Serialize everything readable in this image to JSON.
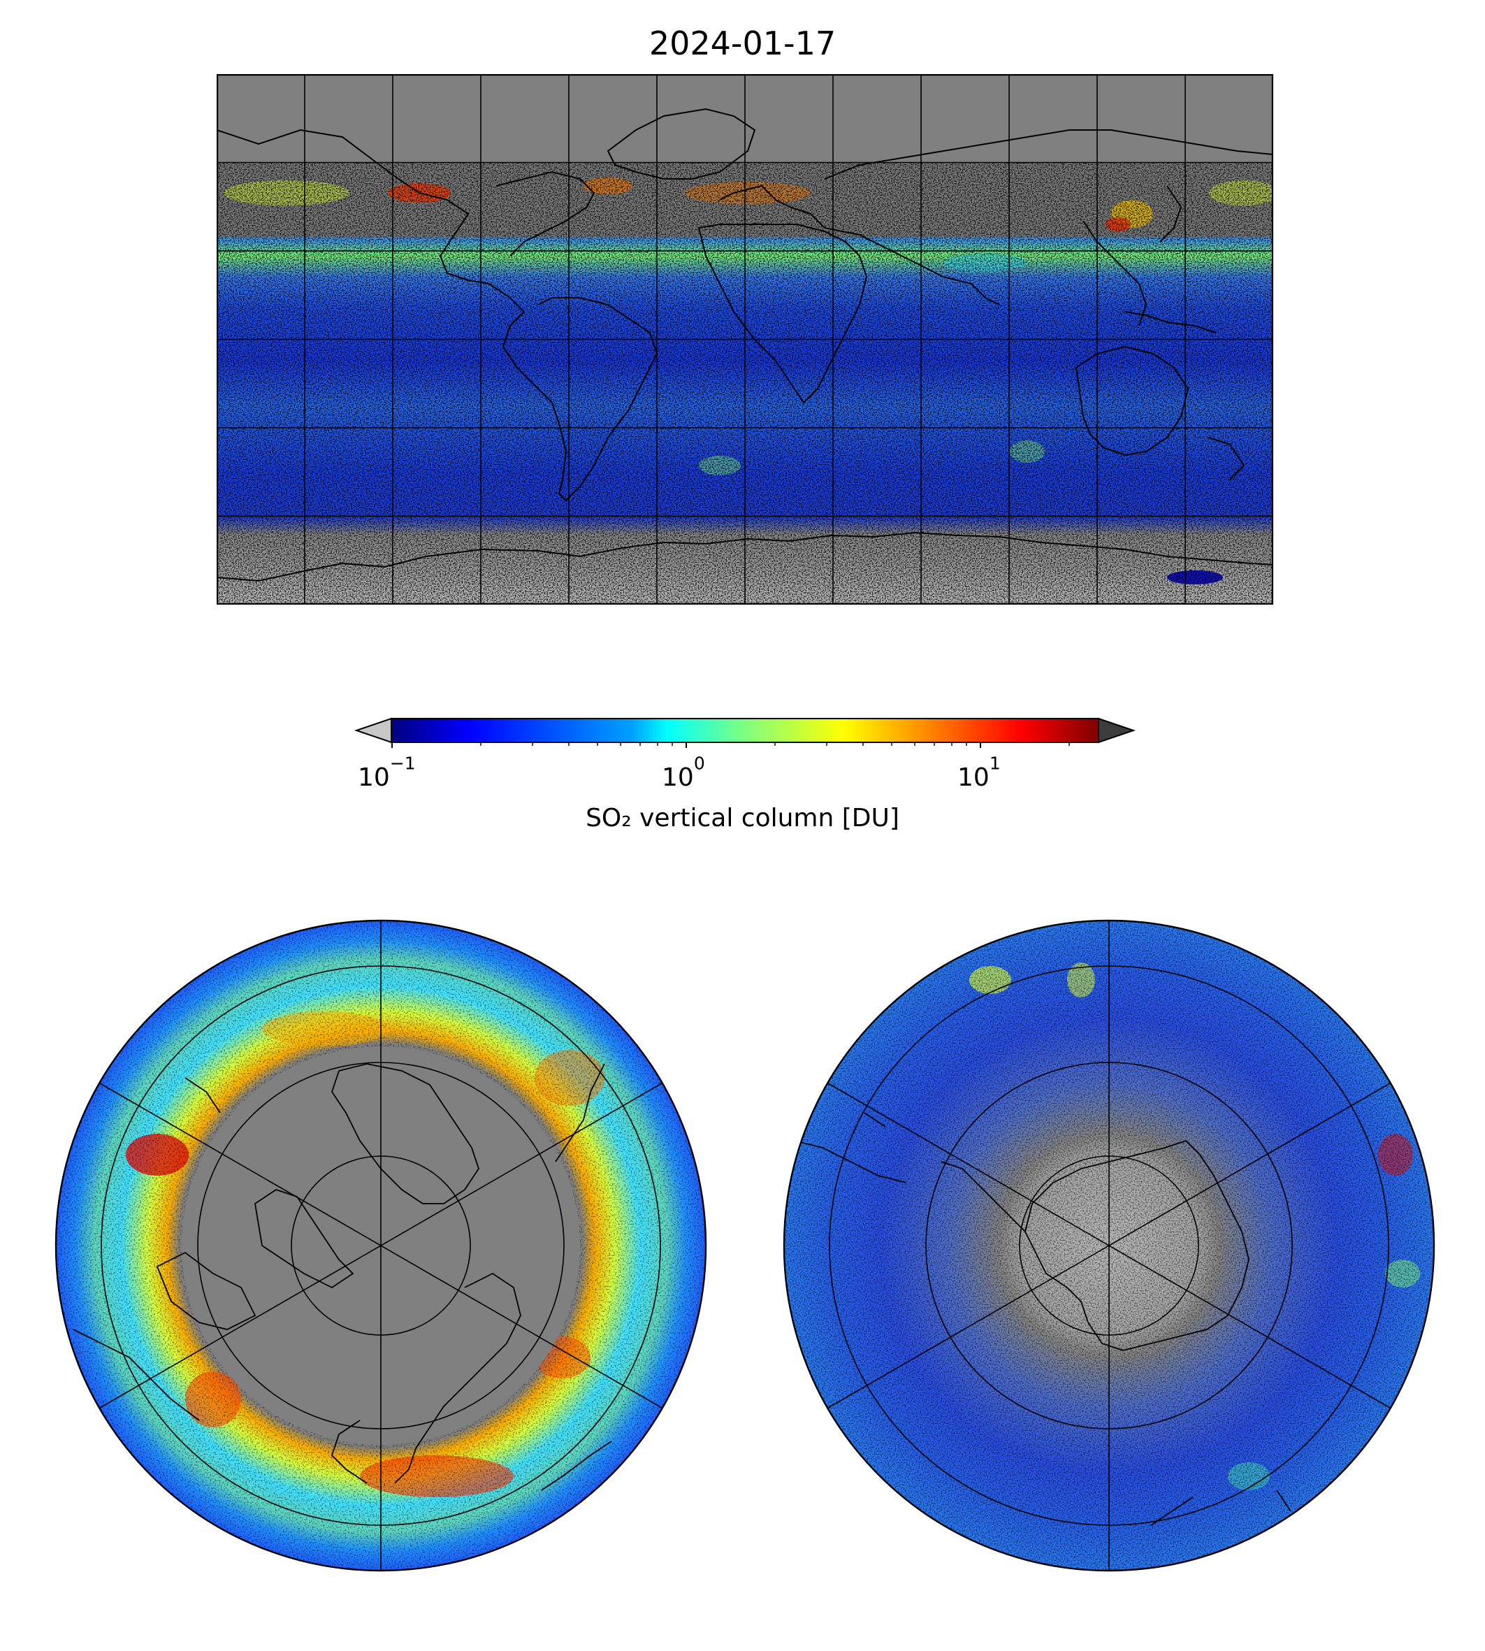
{
  "figure": {
    "title": "2024-01-17",
    "colorbar": {
      "label": "SO₂ vertical column [DU]",
      "scale": "log",
      "range": [
        0.1,
        25
      ],
      "extend": "both",
      "under_color": "#c8c8c8",
      "over_color": "#3c3c3c",
      "ticks": [
        {
          "base": "10",
          "exp": "−1"
        },
        {
          "base": "10",
          "exp": "0"
        },
        {
          "base": "10",
          "exp": "1"
        }
      ],
      "colormap": [
        "#00007f",
        "#0000ff",
        "#007fff",
        "#00ffff",
        "#7fff7f",
        "#ffff00",
        "#ff7f00",
        "#ff0000",
        "#7f0000"
      ]
    },
    "background_no_data": "#808080",
    "panels": [
      {
        "name": "global-map",
        "projection": "equirectangular",
        "lon_range": [
          -180,
          180
        ],
        "lat_range": [
          -90,
          90
        ],
        "gridline_spacing_deg": 30
      },
      {
        "name": "north-polar-map",
        "projection": "north-polar-stereographic"
      },
      {
        "name": "south-polar-map",
        "projection": "south-polar-stereographic"
      }
    ]
  }
}
